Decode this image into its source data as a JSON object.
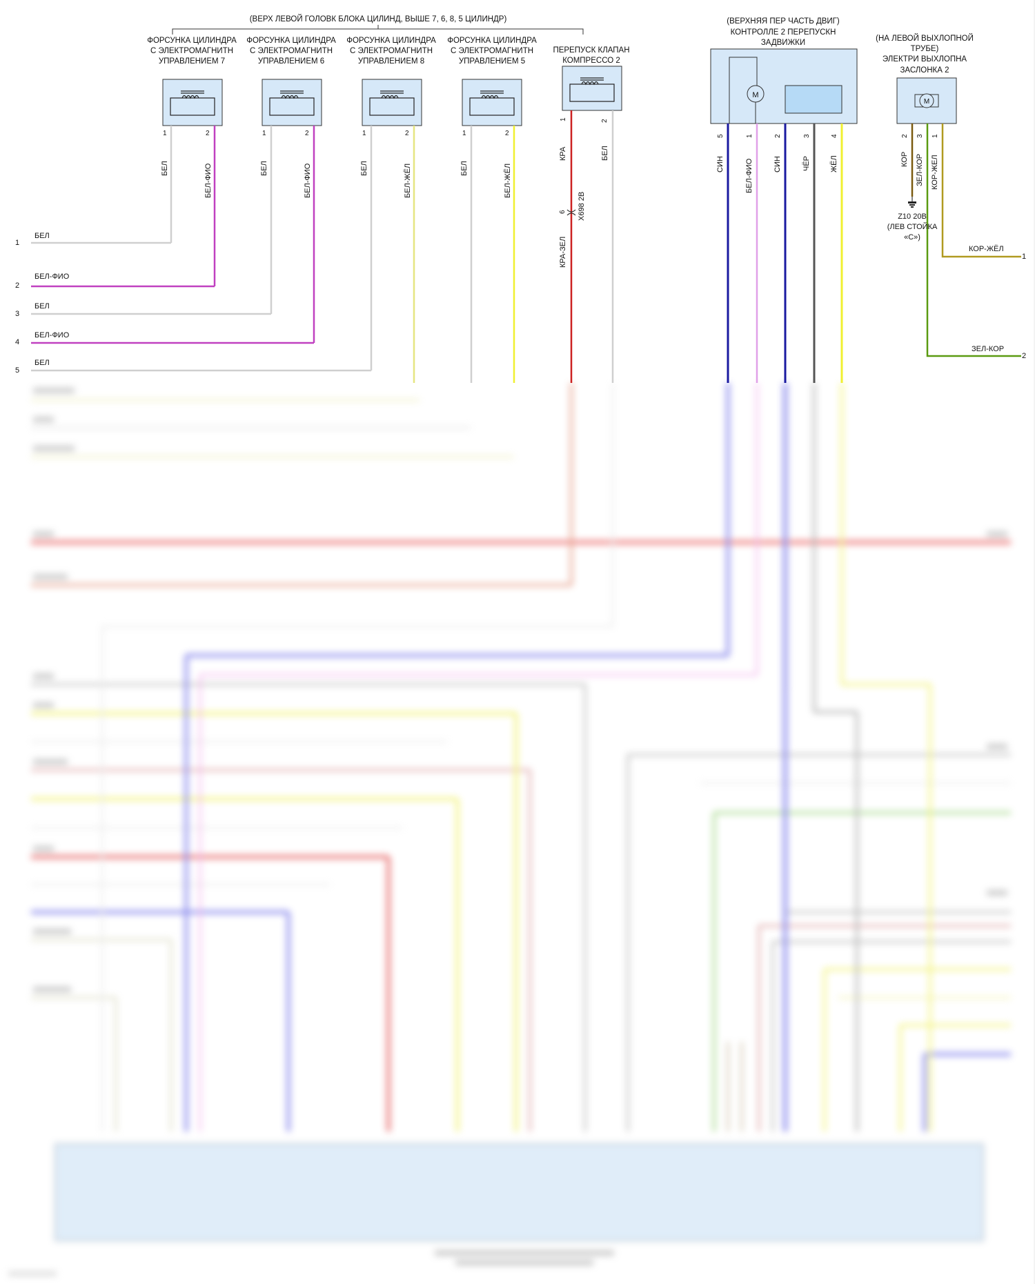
{
  "colors": {
    "white_wire": "#cfcfcf",
    "white_violet": "#c040c0",
    "white_yellow": "#e6e680",
    "red": "#cc2020",
    "blue": "#1a1aa0",
    "black": "#555555",
    "yellow": "#f0f030",
    "brown": "#7a5a10",
    "green": "#5a9a10",
    "connector_fill": "#d6e8f8"
  },
  "header": {
    "injectors_location": "(ВЕРХ ЛЕВОЙ ГОЛОВК БЛОКА ЦИЛИНД, ВЫШЕ 7, 6, 8, 5 ЦИЛИНДР)"
  },
  "injectors": [
    {
      "line1": "ФОРСУНКА ЦИЛИНДРА",
      "line2": "С ЭЛЕКТРОМАГНИТН",
      "line3": "УПРАВЛЕНИЕМ 7",
      "pin1": "1",
      "pin2": "2",
      "wire1": "БЕЛ",
      "wire2": "БЕЛ-ФИО"
    },
    {
      "line1": "ФОРСУНКА ЦИЛИНДРА",
      "line2": "С ЭЛЕКТРОМАГНИТН",
      "line3": "УПРАВЛЕНИЕМ 6",
      "pin1": "1",
      "pin2": "2",
      "wire1": "БЕЛ",
      "wire2": "БЕЛ-ФИО"
    },
    {
      "line1": "ФОРСУНКА ЦИЛИНДРА",
      "line2": "С ЭЛЕКТРОМАГНИТН",
      "line3": "УПРАВЛЕНИЕМ 8",
      "pin1": "1",
      "pin2": "2",
      "wire1": "БЕЛ",
      "wire2": "БЕЛ-ЖЁЛ"
    },
    {
      "line1": "ФОРСУНКА ЦИЛИНДРА",
      "line2": "С ЭЛЕКТРОМАГНИТН",
      "line3": "УПРАВЛЕНИЕМ 5",
      "pin1": "1",
      "pin2": "2",
      "wire1": "БЕЛ",
      "wire2": "БЕЛ-ЖЁЛ"
    }
  ],
  "bypass_valve": {
    "line1": "ПЕРЕПУСК КЛАПАН",
    "line2": "КОМПРЕССО 2",
    "pin1": "1",
    "pin2": "2",
    "wire1": "КРА",
    "wire2": "БЕЛ",
    "connector_label": "X698 2B",
    "connector_pin": "6",
    "wire1_after": "КРА-ЗЕЛ"
  },
  "throttle_control": {
    "line1": "(ВЕРХНЯЯ ПЕР ЧАСТЬ ДВИГ)",
    "line2": "КОНТРОЛЛЕ 2 ПЕРЕПУСКН",
    "line3": "ЗАДВИЖКИ",
    "motor_symbol": "M",
    "pins": [
      "5",
      "1",
      "2",
      "3",
      "4"
    ],
    "wires": [
      "СИН",
      "БЕЛ-ФИО",
      "СИН",
      "ЧЁР",
      "ЖЁЛ"
    ]
  },
  "exhaust_flap": {
    "line1": "(НА ЛЕВОЙ ВЫХЛОПНОЙ",
    "line2": "ТРУБЕ)",
    "line3": "ЭЛЕКТРИ ВЫХЛОПНА",
    "line4": "ЗАСЛОНКА 2",
    "motor_symbol": "M",
    "pins": [
      "2",
      "3",
      "1"
    ],
    "wires": [
      "КОР",
      "ЗЕЛ-КОР",
      "КОР-ЖЕЛ"
    ],
    "ground_line1": "Z10 20B",
    "ground_line2": "(ЛЕВ СТОЙКА",
    "ground_line3": "«С»)"
  },
  "left_wires": [
    {
      "num": "1",
      "label": "БЕЛ"
    },
    {
      "num": "2",
      "label": "БЕЛ-ФИО"
    },
    {
      "num": "3",
      "label": "БЕЛ"
    },
    {
      "num": "4",
      "label": "БЕЛ-ФИО"
    },
    {
      "num": "5",
      "label": "БЕЛ"
    }
  ],
  "right_wires": [
    {
      "num": "1",
      "label": "КОР-ЖЁЛ"
    },
    {
      "num": "2",
      "label": "ЗЕЛ-КОР"
    }
  ]
}
